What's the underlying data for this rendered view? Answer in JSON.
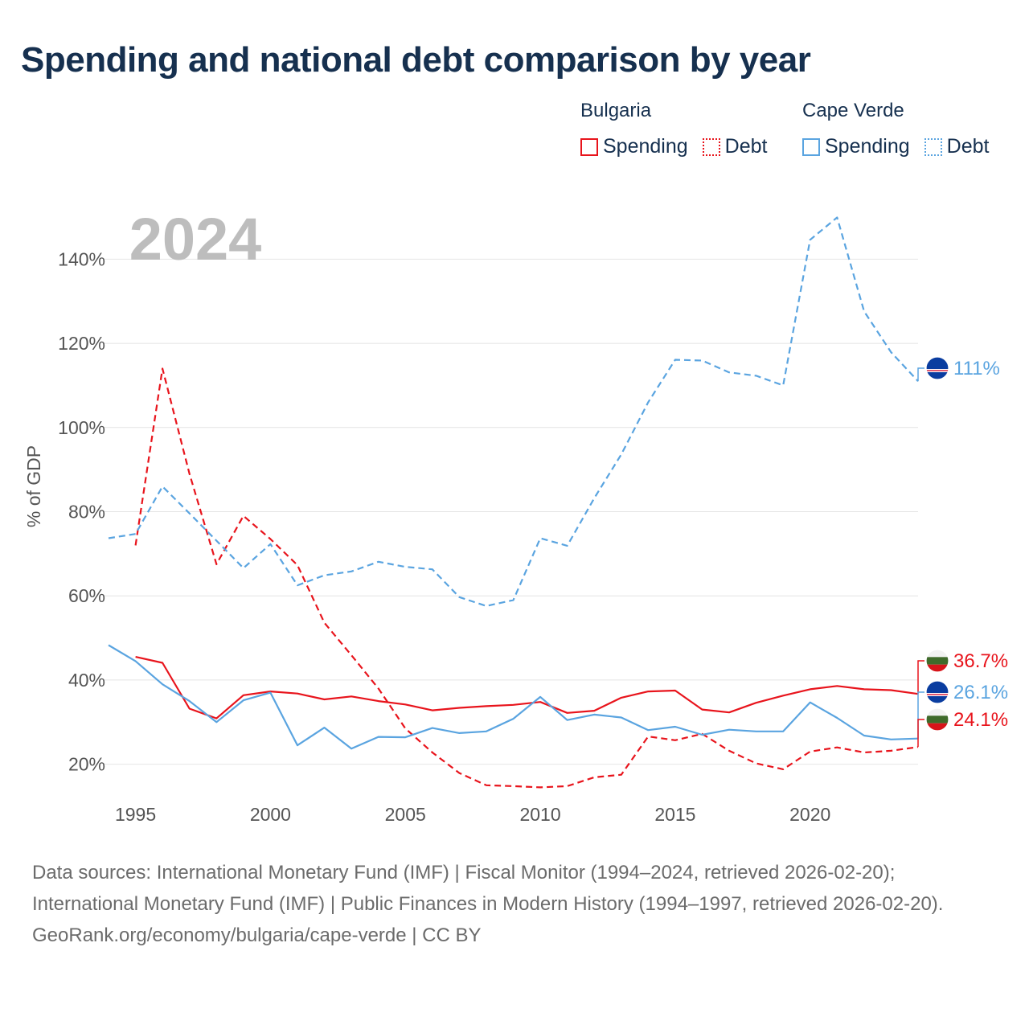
{
  "title": "Spending and national debt comparison by year",
  "legend": {
    "groups": [
      {
        "country": "Bulgaria",
        "color": "#e8141c",
        "items": [
          {
            "label": "Spending",
            "style": "solid"
          },
          {
            "label": "Debt",
            "style": "dotted"
          }
        ]
      },
      {
        "country": "Cape Verde",
        "color": "#5aa4e0",
        "items": [
          {
            "label": "Spending",
            "style": "solid"
          },
          {
            "label": "Debt",
            "style": "dotted"
          }
        ]
      }
    ]
  },
  "year_label": "2024",
  "footer": {
    "sources": "Data sources: International Monetary Fund (IMF) | Fiscal Monitor (1994–2024, retrieved 2026-02-20); International Monetary Fund (IMF) | Public Finances in Modern History (1994–1997, retrieved 2026-02-20).",
    "credit": "GeoRank.org/economy/bulgaria/cape-verde | CC BY"
  },
  "chart_data": {
    "type": "line",
    "title": "Spending and national debt comparison by year",
    "xlabel": "",
    "ylabel": "% of GDP",
    "xlim": [
      1994,
      2024
    ],
    "ylim": [
      10,
      150
    ],
    "x_ticks": [
      1995,
      2000,
      2005,
      2010,
      2015,
      2020
    ],
    "y_ticks": [
      20,
      40,
      60,
      80,
      100,
      120,
      140
    ],
    "y_tick_labels": [
      "20%",
      "40%",
      "60%",
      "80%",
      "100%",
      "120%",
      "140%"
    ],
    "grid": true,
    "series": [
      {
        "name": "Bulgaria Spending",
        "country": "Bulgaria",
        "metric": "Spending",
        "color": "#e8141c",
        "dash": "solid",
        "end_label": "36.7%",
        "x": [
          1995,
          1996,
          1997,
          1998,
          1999,
          2000,
          2001,
          2002,
          2003,
          2004,
          2005,
          2006,
          2007,
          2008,
          2009,
          2010,
          2011,
          2012,
          2013,
          2014,
          2015,
          2016,
          2017,
          2018,
          2019,
          2020,
          2021,
          2022,
          2023,
          2024
        ],
        "values": [
          45.5,
          44.1,
          33.2,
          30.9,
          36.4,
          37.3,
          36.8,
          35.4,
          36.1,
          35.0,
          34.2,
          32.8,
          33.4,
          33.8,
          34.1,
          34.8,
          32.2,
          32.7,
          35.8,
          37.3,
          37.5,
          33.0,
          32.3,
          34.6,
          36.3,
          37.8,
          38.6,
          37.8,
          37.6,
          36.7
        ]
      },
      {
        "name": "Bulgaria Debt",
        "country": "Bulgaria",
        "metric": "Debt",
        "color": "#e8141c",
        "dash": "dashed",
        "end_label": "24.1%",
        "x": [
          1995,
          1996,
          1997,
          1998,
          1999,
          2000,
          2001,
          2002,
          2003,
          2004,
          2005,
          2006,
          2007,
          2008,
          2009,
          2010,
          2011,
          2012,
          2013,
          2014,
          2015,
          2016,
          2017,
          2018,
          2019,
          2020,
          2021,
          2022,
          2023,
          2024
        ],
        "values": [
          72.0,
          114.0,
          89.0,
          67.5,
          79.0,
          73.5,
          67.3,
          53.6,
          45.9,
          38.0,
          28.5,
          22.8,
          17.9,
          15.0,
          14.8,
          14.5,
          14.8,
          16.9,
          17.5,
          26.6,
          25.7,
          27.2,
          23.2,
          20.2,
          18.8,
          23.0,
          24.0,
          22.8,
          23.2,
          24.1
        ]
      },
      {
        "name": "Cape Verde Spending",
        "country": "Cape Verde",
        "metric": "Spending",
        "color": "#5aa4e0",
        "dash": "solid",
        "end_label": "26.1%",
        "x": [
          1994,
          1995,
          1996,
          1997,
          1998,
          1999,
          2000,
          2001,
          2002,
          2003,
          2004,
          2005,
          2006,
          2007,
          2008,
          2009,
          2010,
          2011,
          2012,
          2013,
          2014,
          2015,
          2016,
          2017,
          2018,
          2019,
          2020,
          2021,
          2022,
          2023,
          2024
        ],
        "values": [
          48.3,
          44.5,
          39.0,
          35.0,
          30.0,
          35.2,
          37.0,
          24.5,
          28.7,
          23.7,
          26.5,
          26.4,
          28.6,
          27.4,
          27.8,
          30.8,
          36.0,
          30.5,
          31.8,
          31.1,
          28.1,
          28.9,
          27.0,
          28.2,
          27.8,
          27.8,
          34.7,
          31.0,
          26.8,
          25.9,
          26.1
        ]
      },
      {
        "name": "Cape Verde Debt",
        "country": "Cape Verde",
        "metric": "Debt",
        "color": "#5aa4e0",
        "dash": "dashed",
        "end_label": "111%",
        "x": [
          1994,
          1995,
          1996,
          1997,
          1998,
          1999,
          2000,
          2001,
          2002,
          2003,
          2004,
          2005,
          2006,
          2007,
          2008,
          2009,
          2010,
          2011,
          2012,
          2013,
          2014,
          2015,
          2016,
          2017,
          2018,
          2019,
          2020,
          2021,
          2022,
          2023,
          2024
        ],
        "values": [
          73.7,
          74.7,
          86.0,
          79.6,
          73.1,
          66.6,
          72.3,
          62.5,
          64.9,
          65.8,
          68.1,
          66.9,
          66.3,
          59.7,
          57.6,
          59.0,
          73.7,
          71.9,
          83.2,
          93.6,
          106.0,
          116.1,
          115.9,
          113.1,
          112.3,
          110.0,
          144.6,
          149.9,
          127.6,
          117.9,
          111.0
        ]
      }
    ]
  }
}
